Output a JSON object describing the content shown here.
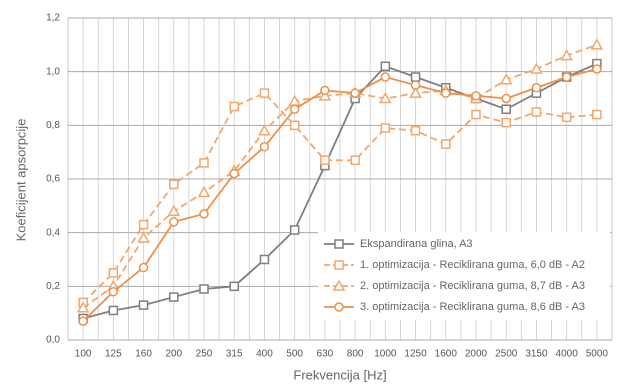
{
  "chart_data": {
    "type": "line",
    "x_label": "Frekvencija [Hz]",
    "y_label": "Koeficijent apsorpcije",
    "categories": [
      "100",
      "125",
      "160",
      "200",
      "250",
      "315",
      "400",
      "500",
      "630",
      "800",
      "1000",
      "1250",
      "1600",
      "2000",
      "2500",
      "3150",
      "4000",
      "5000"
    ],
    "ylim": [
      0,
      1.2
    ],
    "yticks": [
      {
        "value": 0,
        "label": "0,0"
      },
      {
        "value": 0.2,
        "label": "0,2"
      },
      {
        "value": 0.4,
        "label": "0,4"
      },
      {
        "value": 0.6,
        "label": "0,6"
      },
      {
        "value": 0.8,
        "label": "0,8"
      },
      {
        "value": 1.0,
        "label": "1,0"
      },
      {
        "value": 1.2,
        "label": "1,2"
      }
    ],
    "grid": true,
    "legend": "lower right",
    "series": [
      {
        "name": "Ekspandirana glina, A3",
        "color": "#7f7f7f",
        "marker": "square",
        "dash": false,
        "values": [
          0.08,
          0.11,
          0.13,
          0.16,
          0.19,
          0.2,
          0.3,
          0.41,
          0.65,
          0.9,
          1.02,
          0.98,
          0.94,
          0.9,
          0.86,
          0.92,
          0.98,
          1.03
        ]
      },
      {
        "name": "1. optimizacija - Reciklirana guma, 6,0 dB - A2",
        "color": "#f4a66a",
        "marker": "square",
        "dash": true,
        "values": [
          0.14,
          0.25,
          0.43,
          0.58,
          0.66,
          0.87,
          0.92,
          0.8,
          0.67,
          0.67,
          0.79,
          0.78,
          0.73,
          0.84,
          0.81,
          0.85,
          0.83,
          0.84
        ]
      },
      {
        "name": "2. optimizacija - Reciklirana guma, 8,7 dB - A3",
        "color": "#f4a66a",
        "marker": "triangle",
        "dash": true,
        "values": [
          0.12,
          0.2,
          0.38,
          0.48,
          0.55,
          0.63,
          0.78,
          0.89,
          0.91,
          0.92,
          0.9,
          0.92,
          0.93,
          0.9,
          0.97,
          1.01,
          1.06,
          1.1
        ]
      },
      {
        "name": "3. optimizacija - Reciklirana guma, 8,6 dB - A3",
        "color": "#ee9048",
        "marker": "circle",
        "dash": false,
        "values": [
          0.07,
          0.18,
          0.27,
          0.44,
          0.47,
          0.62,
          0.72,
          0.86,
          0.93,
          0.92,
          0.98,
          0.95,
          0.92,
          0.91,
          0.9,
          0.94,
          0.98,
          1.01
        ]
      }
    ]
  }
}
